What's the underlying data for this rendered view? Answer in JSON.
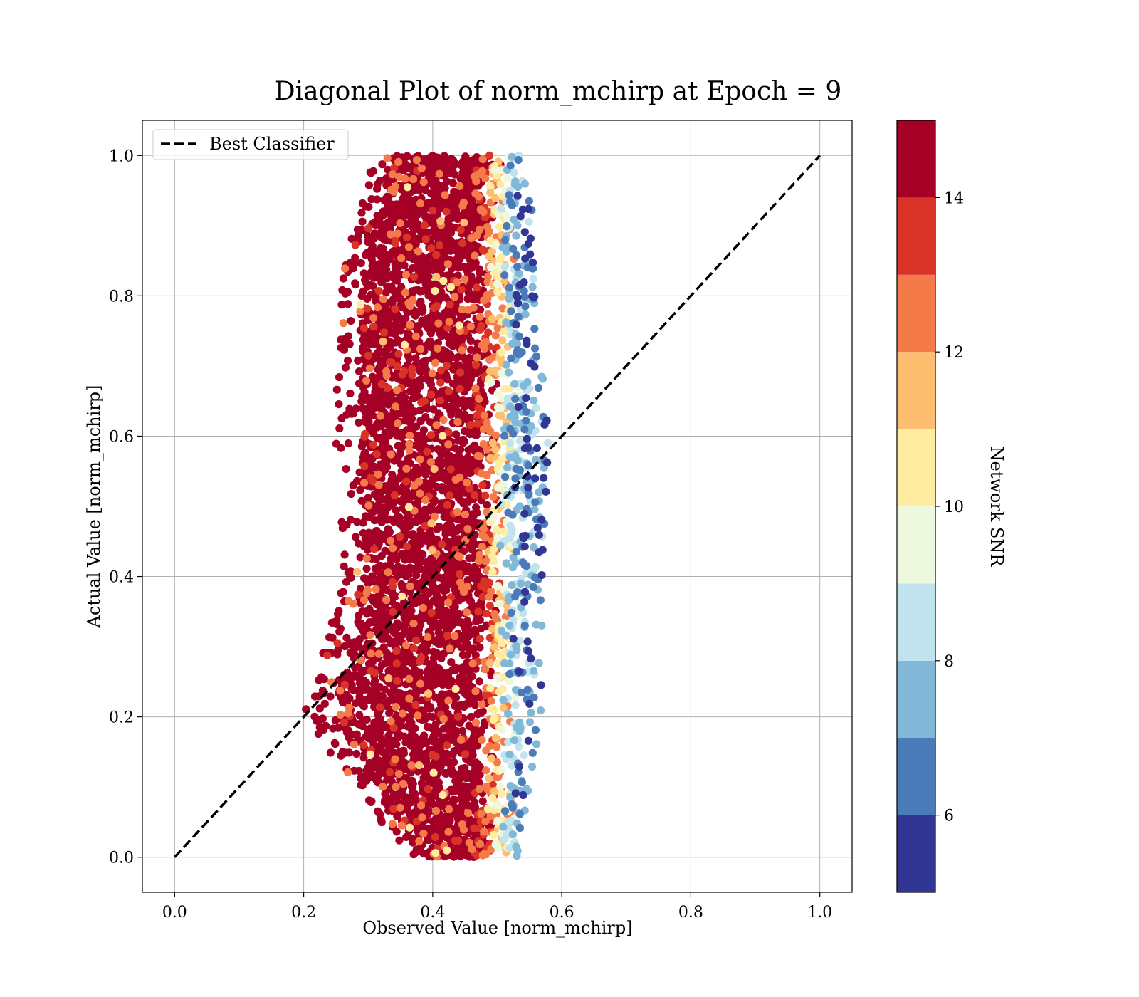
{
  "chart_data": {
    "type": "scatter",
    "title": "Diagonal Plot of norm_mchirp at Epoch = 9",
    "xlabel": "Observed Value [norm_mchirp]",
    "ylabel": "Actual Value [norm_mchirp]",
    "xlim": [
      -0.05,
      1.05
    ],
    "ylim": [
      -0.05,
      1.05
    ],
    "xticks": [
      "0.0",
      "0.2",
      "0.4",
      "0.6",
      "0.8",
      "1.0"
    ],
    "yticks": [
      "0.0",
      "0.2",
      "0.4",
      "0.6",
      "0.8",
      "1.0"
    ],
    "grid": true,
    "legend": {
      "placement": "top-left",
      "entries": [
        {
          "label": "Best Classifier",
          "style": "dashed",
          "color": "#000000"
        }
      ]
    },
    "reference_line": {
      "name": "Best Classifier",
      "x": [
        0.0,
        1.0
      ],
      "y": [
        0.0,
        1.0
      ]
    },
    "colorbar": {
      "label": "Network SNR",
      "range": [
        5,
        15
      ],
      "ticks": [
        "6",
        "8",
        "10",
        "12",
        "14"
      ],
      "colormap": "RdYlBu_r",
      "bins": [
        {
          "from": 5,
          "to": 6,
          "color": "#313695"
        },
        {
          "from": 6,
          "to": 7,
          "color": "#4a7ab7"
        },
        {
          "from": 7,
          "to": 8,
          "color": "#81b8d8"
        },
        {
          "from": 8,
          "to": 9,
          "color": "#c1e3ee"
        },
        {
          "from": 9,
          "to": 10,
          "color": "#eef8df"
        },
        {
          "from": 10,
          "to": 11,
          "color": "#feeda1"
        },
        {
          "from": 11,
          "to": 12,
          "color": "#fdbe70"
        },
        {
          "from": 12,
          "to": 13,
          "color": "#f57a49"
        },
        {
          "from": 13,
          "to": 14,
          "color": "#d93328"
        },
        {
          "from": 14,
          "to": 15,
          "color": "#a50026"
        }
      ]
    },
    "point_cloud": {
      "y_range": [
        0.0,
        1.0
      ],
      "observed_min_by_actual": [
        [
          0.0,
          0.36
        ],
        [
          0.2,
          0.2
        ],
        [
          0.4,
          0.26
        ],
        [
          0.6,
          0.25
        ],
        [
          0.8,
          0.25
        ],
        [
          1.0,
          0.31
        ]
      ],
      "observed_max_by_actual": [
        [
          0.0,
          0.53
        ],
        [
          0.2,
          0.57
        ],
        [
          0.4,
          0.57
        ],
        [
          0.6,
          0.58
        ],
        [
          0.8,
          0.56
        ],
        [
          1.0,
          0.55
        ]
      ],
      "snr_trend": "high SNR (14–15) for observed < 0.50; low SNR (5–9) for observed 0.52–0.62"
    }
  }
}
